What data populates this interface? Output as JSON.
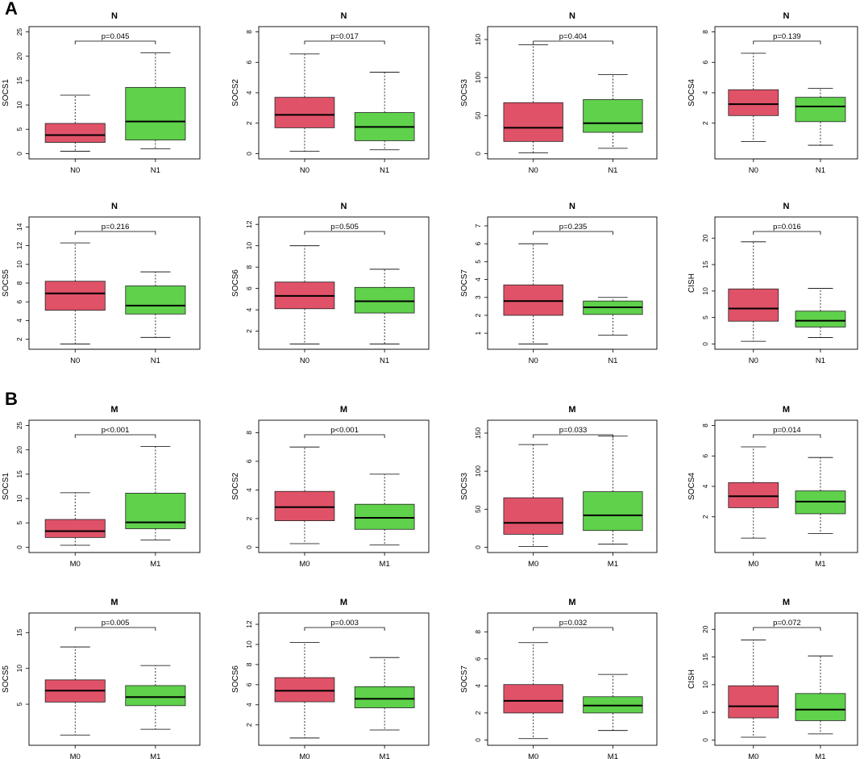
{
  "figure": {
    "panel_labels": [
      "A",
      "B"
    ]
  },
  "colors": {
    "group1_fill": "#e05268",
    "group2_fill": "#5fd14b",
    "stroke": "#222222"
  },
  "chart_data": [
    {
      "type": "box",
      "panel": "A",
      "title": "N",
      "ylabel": "SOCS1",
      "categories": [
        "N0",
        "N1"
      ],
      "ylim": [
        0,
        25
      ],
      "yticks": [
        0,
        5,
        10,
        15,
        20,
        25
      ],
      "pvalue": "p=0.045",
      "series": [
        {
          "name": "N0",
          "whisker_low": 0.5,
          "q1": 2.3,
          "median": 3.8,
          "q3": 6.2,
          "whisker_high": 12
        },
        {
          "name": "N1",
          "whisker_low": 1,
          "q1": 2.8,
          "median": 6.6,
          "q3": 13.6,
          "whisker_high": 20.7
        }
      ]
    },
    {
      "type": "box",
      "panel": "A",
      "title": "N",
      "ylabel": "SOCS2",
      "categories": [
        "N0",
        "N1"
      ],
      "ylim": [
        0,
        8
      ],
      "yticks": [
        0,
        2,
        4,
        6,
        8
      ],
      "pvalue": "p=0.017",
      "series": [
        {
          "name": "N0",
          "whisker_low": 0.15,
          "q1": 1.7,
          "median": 2.55,
          "q3": 3.7,
          "whisker_high": 6.55
        },
        {
          "name": "N1",
          "whisker_low": 0.25,
          "q1": 0.85,
          "median": 1.75,
          "q3": 2.7,
          "whisker_high": 5.35
        }
      ]
    },
    {
      "type": "box",
      "panel": "A",
      "title": "N",
      "ylabel": "SOCS3",
      "categories": [
        "N0",
        "N1"
      ],
      "ylim": [
        0,
        160
      ],
      "yticks": [
        0,
        50,
        100,
        150
      ],
      "pvalue": "p=0.404",
      "series": [
        {
          "name": "N0",
          "whisker_low": 1,
          "q1": 16,
          "median": 34,
          "q3": 67,
          "whisker_high": 143
        },
        {
          "name": "N1",
          "whisker_low": 7,
          "q1": 28,
          "median": 40,
          "q3": 71,
          "whisker_high": 104
        }
      ]
    },
    {
      "type": "box",
      "panel": "A",
      "title": "N",
      "ylabel": "SOCS4",
      "categories": [
        "N0",
        "N1"
      ],
      "ylim": [
        0,
        8
      ],
      "yticks": [
        2,
        4,
        6,
        8
      ],
      "pvalue": "p=0.139",
      "series": [
        {
          "name": "N0",
          "whisker_low": 0.8,
          "q1": 2.5,
          "median": 3.25,
          "q3": 4.2,
          "whisker_high": 6.6
        },
        {
          "name": "N1",
          "whisker_low": 0.55,
          "q1": 2.1,
          "median": 3.1,
          "q3": 3.7,
          "whisker_high": 4.3
        }
      ]
    },
    {
      "type": "box",
      "panel": "A",
      "title": "N",
      "ylabel": "SOCS5",
      "categories": [
        "N0",
        "N1"
      ],
      "ylim": [
        1.5,
        14.5
      ],
      "yticks": [
        2,
        4,
        6,
        8,
        10,
        12,
        14
      ],
      "pvalue": "p=0.216",
      "series": [
        {
          "name": "N0",
          "whisker_low": 1.5,
          "q1": 5.1,
          "median": 6.9,
          "q3": 8.2,
          "whisker_high": 12.3
        },
        {
          "name": "N1",
          "whisker_low": 2.2,
          "q1": 4.7,
          "median": 5.6,
          "q3": 7.7,
          "whisker_high": 9.2
        }
      ]
    },
    {
      "type": "box",
      "panel": "A",
      "title": "N",
      "ylabel": "SOCS6",
      "categories": [
        "N0",
        "N1"
      ],
      "ylim": [
        0.8,
        12.2
      ],
      "yticks": [
        2,
        4,
        6,
        8,
        10,
        12
      ],
      "pvalue": "p=0.505",
      "series": [
        {
          "name": "N0",
          "whisker_low": 0.8,
          "q1": 4.1,
          "median": 5.3,
          "q3": 6.6,
          "whisker_high": 10
        },
        {
          "name": "N1",
          "whisker_low": 0.8,
          "q1": 3.7,
          "median": 4.8,
          "q3": 6.1,
          "whisker_high": 7.8
        }
      ]
    },
    {
      "type": "box",
      "panel": "A",
      "title": "N",
      "ylabel": "SOCS7",
      "categories": [
        "N0",
        "N1"
      ],
      "ylim": [
        0.4,
        7.2
      ],
      "yticks": [
        1,
        2,
        3,
        4,
        5,
        6,
        7
      ],
      "pvalue": "p=0.235",
      "series": [
        {
          "name": "N0",
          "whisker_low": 0.4,
          "q1": 2.0,
          "median": 2.8,
          "q3": 3.7,
          "whisker_high": 6.0
        },
        {
          "name": "N1",
          "whisker_low": 0.9,
          "q1": 2.05,
          "median": 2.45,
          "q3": 2.8,
          "whisker_high": 3.0
        }
      ]
    },
    {
      "type": "box",
      "panel": "A",
      "title": "N",
      "ylabel": "CISH",
      "categories": [
        "N0",
        "N1"
      ],
      "ylim": [
        0,
        23
      ],
      "yticks": [
        0,
        5,
        10,
        15,
        20
      ],
      "pvalue": "p=0.016",
      "series": [
        {
          "name": "N0",
          "whisker_low": 0.5,
          "q1": 4.3,
          "median": 6.7,
          "q3": 10.4,
          "whisker_high": 19.3
        },
        {
          "name": "N1",
          "whisker_low": 1.2,
          "q1": 3.2,
          "median": 4.4,
          "q3": 6.2,
          "whisker_high": 10.5
        }
      ]
    },
    {
      "type": "box",
      "panel": "B",
      "title": "M",
      "ylabel": "SOCS1",
      "categories": [
        "M0",
        "M1"
      ],
      "ylim": [
        0,
        25
      ],
      "yticks": [
        0,
        5,
        10,
        15,
        20,
        25
      ],
      "pvalue": "p<0.001",
      "series": [
        {
          "name": "M0",
          "whisker_low": 0.4,
          "q1": 2.0,
          "median": 3.3,
          "q3": 5.7,
          "whisker_high": 11.2
        },
        {
          "name": "M1",
          "whisker_low": 1.5,
          "q1": 3.8,
          "median": 5.1,
          "q3": 11.1,
          "whisker_high": 20.7
        }
      ]
    },
    {
      "type": "box",
      "panel": "B",
      "title": "M",
      "ylabel": "SOCS2",
      "categories": [
        "M0",
        "M1"
      ],
      "ylim": [
        0,
        8.5
      ],
      "yticks": [
        0,
        2,
        4,
        6,
        8
      ],
      "pvalue": "p<0.001",
      "series": [
        {
          "name": "M0",
          "whisker_low": 0.25,
          "q1": 1.85,
          "median": 2.8,
          "q3": 3.9,
          "whisker_high": 7.0
        },
        {
          "name": "M1",
          "whisker_low": 0.15,
          "q1": 1.25,
          "median": 2.05,
          "q3": 3.0,
          "whisker_high": 5.1
        }
      ]
    },
    {
      "type": "box",
      "panel": "B",
      "title": "M",
      "ylabel": "SOCS3",
      "categories": [
        "M0",
        "M1"
      ],
      "ylim": [
        0,
        160
      ],
      "yticks": [
        0,
        50,
        100,
        150
      ],
      "pvalue": "p=0.033",
      "series": [
        {
          "name": "M0",
          "whisker_low": 1,
          "q1": 17,
          "median": 32,
          "q3": 65,
          "whisker_high": 135
        },
        {
          "name": "M1",
          "whisker_low": 4,
          "q1": 22,
          "median": 42,
          "q3": 73,
          "whisker_high": 146
        }
      ]
    },
    {
      "type": "box",
      "panel": "B",
      "title": "M",
      "ylabel": "SOCS4",
      "categories": [
        "M0",
        "M1"
      ],
      "ylim": [
        0,
        8
      ],
      "yticks": [
        2,
        4,
        6,
        8
      ],
      "pvalue": "p=0.014",
      "series": [
        {
          "name": "M0",
          "whisker_low": 0.6,
          "q1": 2.6,
          "median": 3.35,
          "q3": 4.25,
          "whisker_high": 6.6
        },
        {
          "name": "M1",
          "whisker_low": 0.9,
          "q1": 2.2,
          "median": 3.0,
          "q3": 3.7,
          "whisker_high": 5.9
        }
      ]
    },
    {
      "type": "box",
      "panel": "B",
      "title": "M",
      "ylabel": "SOCS5",
      "categories": [
        "M0",
        "M1"
      ],
      "ylim": [
        0,
        17
      ],
      "yticks": [
        5,
        10,
        15
      ],
      "pvalue": "p=0.005",
      "series": [
        {
          "name": "M0",
          "whisker_low": 0.7,
          "q1": 5.3,
          "median": 6.9,
          "q3": 8.4,
          "whisker_high": 13
        },
        {
          "name": "M1",
          "whisker_low": 1.5,
          "q1": 4.8,
          "median": 6.0,
          "q3": 7.6,
          "whisker_high": 10.4
        }
      ]
    },
    {
      "type": "box",
      "panel": "B",
      "title": "M",
      "ylabel": "SOCS6",
      "categories": [
        "M0",
        "M1"
      ],
      "ylim": [
        0.5,
        12.6
      ],
      "yticks": [
        2,
        4,
        6,
        8,
        10,
        12
      ],
      "pvalue": "p=0.003",
      "series": [
        {
          "name": "M0",
          "whisker_low": 0.7,
          "q1": 4.3,
          "median": 5.4,
          "q3": 6.7,
          "whisker_high": 10.2
        },
        {
          "name": "M1",
          "whisker_low": 1.5,
          "q1": 3.7,
          "median": 4.6,
          "q3": 5.8,
          "whisker_high": 8.7
        }
      ]
    },
    {
      "type": "box",
      "panel": "B",
      "title": "M",
      "ylabel": "SOCS7",
      "categories": [
        "M0",
        "M1"
      ],
      "ylim": [
        0,
        9
      ],
      "yticks": [
        0,
        2,
        4,
        6,
        8
      ],
      "pvalue": "p=0.032",
      "series": [
        {
          "name": "M0",
          "whisker_low": 0.1,
          "q1": 2.0,
          "median": 2.9,
          "q3": 4.1,
          "whisker_high": 7.2
        },
        {
          "name": "M1",
          "whisker_low": 0.7,
          "q1": 2.0,
          "median": 2.55,
          "q3": 3.2,
          "whisker_high": 4.85
        }
      ]
    },
    {
      "type": "box",
      "panel": "B",
      "title": "M",
      "ylabel": "CISH",
      "categories": [
        "M0",
        "M1"
      ],
      "ylim": [
        0,
        22
      ],
      "yticks": [
        0,
        5,
        10,
        15,
        20
      ],
      "pvalue": "p=0.072",
      "series": [
        {
          "name": "M0",
          "whisker_low": 0.5,
          "q1": 4.0,
          "median": 6.1,
          "q3": 9.8,
          "whisker_high": 18.1
        },
        {
          "name": "M1",
          "whisker_low": 1.1,
          "q1": 3.5,
          "median": 5.5,
          "q3": 8.4,
          "whisker_high": 15.2
        }
      ]
    }
  ]
}
